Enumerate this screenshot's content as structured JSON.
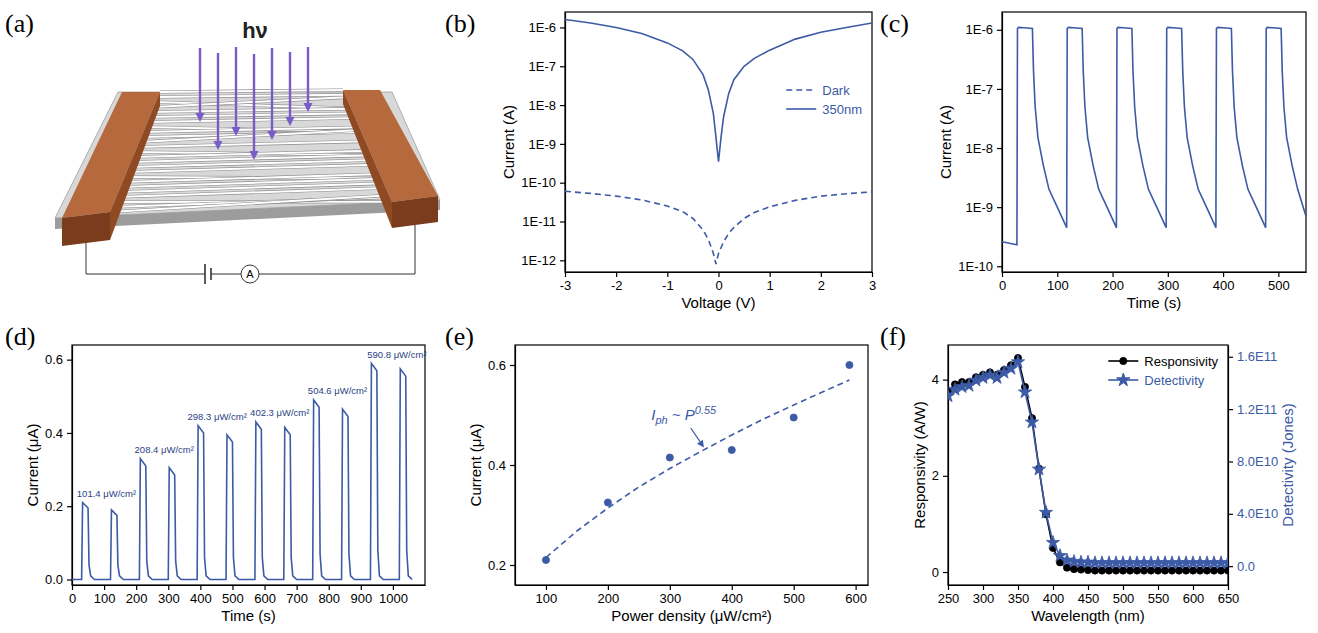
{
  "chart_data": [
    {
      "type": "diagram",
      "panel": "(a)",
      "light_label": "hν",
      "meter_label": "A"
    },
    {
      "type": "line",
      "panel": "(b)",
      "x_label": "Voltage (V)",
      "y_label": "Current (A)",
      "log": "y",
      "legend": "right",
      "xlim": [
        -3,
        3
      ],
      "xticks": [
        -3,
        -2,
        -1,
        0,
        1,
        2,
        3
      ],
      "ylim": [
        5e-13,
        2.5e-06
      ],
      "yticks": [
        {
          "value": 1e-12,
          "label": "1E-12"
        },
        {
          "value": 1e-11,
          "label": "1E-11"
        },
        {
          "value": 1e-10,
          "label": "1E-10"
        },
        {
          "value": 1e-09,
          "label": "1E-9"
        },
        {
          "value": 1e-08,
          "label": "1E-8"
        },
        {
          "value": 1e-07,
          "label": "1E-7"
        },
        {
          "value": 1e-06,
          "label": "1E-6"
        }
      ],
      "series": [
        {
          "name": "Dark",
          "color": "#3c5aa6",
          "line_style": "dashed",
          "x": [
            -3,
            -2.5,
            -2,
            -1.5,
            -1,
            -0.7,
            -0.5,
            -0.3,
            -0.2,
            -0.1,
            -0.05,
            0,
            0.1,
            0.2,
            0.3,
            0.5,
            0.7,
            1,
            1.5,
            2,
            2.5,
            3
          ],
          "values": [
            6e-11,
            5.3e-11,
            4.5e-11,
            3.6e-11,
            2.5e-11,
            1.8e-11,
            1.2e-11,
            6e-12,
            3.5e-12,
            1.5e-12,
            8e-13,
            1.5e-12,
            3e-12,
            5e-12,
            7e-12,
            1.2e-11,
            1.7e-11,
            2.4e-11,
            3.5e-11,
            4.5e-11,
            5.2e-11,
            5.8e-11
          ]
        },
        {
          "name": "350nm",
          "color": "#3c5aa6",
          "line_style": "solid",
          "x": [
            -3,
            -2.5,
            -2,
            -1.5,
            -1,
            -0.7,
            -0.5,
            -0.3,
            -0.2,
            -0.1,
            -0.05,
            0,
            0.05,
            0.1,
            0.2,
            0.3,
            0.5,
            0.7,
            1,
            1.5,
            2,
            2.5,
            3
          ],
          "values": [
            1.6e-06,
            1.3e-06,
            1e-06,
            7e-07,
            4e-07,
            2.5e-07,
            1.5e-07,
            6e-08,
            2.5e-08,
            6e-09,
            1.5e-09,
            3.5e-10,
            1.5e-09,
            5e-09,
            2e-08,
            4.5e-08,
            1e-07,
            1.6e-07,
            2.6e-07,
            5e-07,
            7.5e-07,
            1e-06,
            1.3e-06
          ]
        }
      ]
    },
    {
      "type": "line",
      "panel": "(c)",
      "x_label": "Time (s)",
      "y_label": "Current (A)",
      "log": "y",
      "xlim": [
        0,
        550
      ],
      "xticks": [
        0,
        100,
        200,
        300,
        400,
        500
      ],
      "ylim": [
        8e-11,
        2e-06
      ],
      "yticks": [
        {
          "value": 1e-10,
          "label": "1E-10"
        },
        {
          "value": 1e-09,
          "label": "1E-9"
        },
        {
          "value": 1e-08,
          "label": "1E-8"
        },
        {
          "value": 1e-07,
          "label": "1E-7"
        },
        {
          "value": 1e-06,
          "label": "1E-6"
        }
      ],
      "series": [
        {
          "color": "#3c5aa6",
          "line_style": "solid",
          "x": [
            0,
            27,
            28,
            30,
            40,
            55,
            57,
            60,
            65,
            75,
            85,
            100,
            117,
            118,
            120,
            130,
            145,
            147,
            150,
            155,
            165,
            175,
            190,
            207,
            208,
            210,
            220,
            235,
            237,
            240,
            245,
            255,
            265,
            280,
            297,
            298,
            300,
            310,
            325,
            327,
            330,
            335,
            345,
            355,
            370,
            387,
            388,
            390,
            400,
            415,
            417,
            420,
            425,
            435,
            445,
            460,
            477,
            478,
            480,
            490,
            505,
            507,
            510,
            515,
            525,
            535,
            550
          ],
          "values": [
            2.6e-10,
            2.3e-10,
            1.05e-06,
            1.1e-06,
            1.08e-06,
            1.05e-06,
            2e-07,
            5e-08,
            1.5e-08,
            5e-09,
            2e-09,
            1e-09,
            4.5e-10,
            1.05e-06,
            1.1e-06,
            1.08e-06,
            1.05e-06,
            2e-07,
            5e-08,
            1.5e-08,
            5e-09,
            2e-09,
            1e-09,
            4.5e-10,
            1.05e-06,
            1.1e-06,
            1.08e-06,
            1.05e-06,
            2e-07,
            5e-08,
            1.5e-08,
            5e-09,
            2e-09,
            1e-09,
            4.5e-10,
            1.05e-06,
            1.1e-06,
            1.08e-06,
            1.05e-06,
            2e-07,
            5e-08,
            1.5e-08,
            5e-09,
            2e-09,
            1e-09,
            4.5e-10,
            1.05e-06,
            1.1e-06,
            1.08e-06,
            1.05e-06,
            2e-07,
            5e-08,
            1.5e-08,
            5e-09,
            2e-09,
            1e-09,
            4.5e-10,
            1.05e-06,
            1.1e-06,
            1.08e-06,
            1.05e-06,
            2e-07,
            5e-08,
            1.5e-08,
            5e-09,
            2e-09,
            7e-10
          ]
        }
      ]
    },
    {
      "type": "line",
      "panel": "(d)",
      "x_label": "Time (s)",
      "y_label": "Current (μA)",
      "xlim": [
        0,
        1100
      ],
      "xticks": [
        0,
        100,
        200,
        300,
        400,
        500,
        600,
        700,
        800,
        900,
        1000
      ],
      "ylim": [
        -0.015,
        0.64
      ],
      "yticks": [
        {
          "value": 0,
          "label": "0.0"
        },
        0.2,
        0.4,
        0.6
      ],
      "series": [
        {
          "color": "#3c5aa6",
          "line_style": "solid",
          "x": [
            0,
            30,
            33,
            50,
            53,
            58,
            70,
            120,
            123,
            140,
            143,
            148,
            160,
            210,
            213,
            230,
            233,
            238,
            250,
            300,
            303,
            320,
            323,
            328,
            340,
            390,
            393,
            410,
            413,
            418,
            430,
            480,
            483,
            500,
            503,
            508,
            520,
            570,
            573,
            590,
            593,
            598,
            610,
            660,
            663,
            680,
            683,
            688,
            700,
            750,
            753,
            770,
            773,
            778,
            790,
            840,
            843,
            860,
            863,
            868,
            880,
            930,
            933,
            950,
            953,
            958,
            970,
            1020,
            1023,
            1040,
            1043,
            1048,
            1060
          ],
          "values": [
            0,
            0,
            0.21,
            0.195,
            0.04,
            0.01,
            0,
            0,
            0.19,
            0.175,
            0.04,
            0.01,
            0,
            0,
            0.33,
            0.31,
            0.05,
            0.01,
            0,
            0,
            0.305,
            0.285,
            0.05,
            0.01,
            0,
            0,
            0.42,
            0.4,
            0.06,
            0.01,
            0,
            0,
            0.395,
            0.375,
            0.06,
            0.01,
            0,
            0,
            0.43,
            0.41,
            0.06,
            0.01,
            0,
            0,
            0.415,
            0.395,
            0.06,
            0.01,
            0,
            0,
            0.49,
            0.47,
            0.07,
            0.01,
            0,
            0,
            0.465,
            0.445,
            0.07,
            0.01,
            0,
            0,
            0.59,
            0.57,
            0.08,
            0.01,
            0,
            0,
            0.575,
            0.555,
            0.08,
            0.01,
            0
          ]
        }
      ],
      "annotations": [
        {
          "text": "101.4 μW/cm²",
          "x": 15,
          "y": 0.225
        },
        {
          "text": "208.4 μW/cm²",
          "x": 195,
          "y": 0.345
        },
        {
          "text": "298.3 μW/cm²",
          "x": 360,
          "y": 0.435
        },
        {
          "text": "402.3 μW/cm²",
          "x": 555,
          "y": 0.445
        },
        {
          "text": "504.6 μW/cm²",
          "x": 735,
          "y": 0.505
        },
        {
          "text": "590.8 μW/cm²",
          "x": 920,
          "y": 0.605
        }
      ]
    },
    {
      "type": "scatter",
      "panel": "(e)",
      "x_label": "Power density (μW/cm²)",
      "y_label": "Current (μA)",
      "xlim": [
        50,
        620
      ],
      "xticks": [
        100,
        200,
        300,
        400,
        500,
        600
      ],
      "ylim": [
        0.16,
        0.64
      ],
      "yticks": [
        0.2,
        0.4,
        0.6
      ],
      "series": [
        {
          "type": "scatter",
          "marker": "circle",
          "color": "#3c5aa6",
          "x": [
            100,
            200,
            300,
            400,
            500,
            590
          ],
          "values": [
            0.21,
            0.325,
            0.415,
            0.43,
            0.495,
            0.6
          ]
        },
        {
          "type": "line",
          "line_style": "dashed",
          "color": "#3c5aa6",
          "x": [
            100,
            150,
            200,
            250,
            300,
            350,
            400,
            450,
            500,
            550,
            590
          ],
          "values": [
            0.215,
            0.268,
            0.314,
            0.356,
            0.393,
            0.427,
            0.46,
            0.491,
            0.52,
            0.548,
            0.57
          ]
        }
      ],
      "annotation": {
        "base": "I",
        "sub": "ph",
        "mid": " ~ P",
        "sup": "0.55",
        "x": 270,
        "y": 0.49,
        "arrow_x": 355,
        "arrow_y": 0.435
      }
    },
    {
      "type": "line",
      "panel": "(f)",
      "x_label": "Wavelength (nm)",
      "y_label": "Responsivity (A/W)",
      "y2_label": "Detectivity (Jones)",
      "legend": "upper right",
      "xlim": [
        250,
        650
      ],
      "xticks": [
        250,
        300,
        350,
        400,
        450,
        500,
        550,
        600,
        650
      ],
      "ylim": [
        -0.27,
        4.72
      ],
      "yticks": [
        0,
        2,
        4
      ],
      "y2lim": [
        -14400000000.0,
        169000000000.0
      ],
      "y2ticks": [
        {
          "value": 0,
          "label": "0.0"
        },
        {
          "value": 40000000000.0,
          "label": "4.0E10"
        },
        {
          "value": 80000000000.0,
          "label": "8.0E10"
        },
        {
          "value": 120000000000.0,
          "label": "1.2E11"
        },
        {
          "value": 160000000000.0,
          "label": "1.6E11"
        }
      ],
      "x": [
        250,
        260,
        270,
        280,
        290,
        300,
        310,
        320,
        330,
        340,
        350,
        360,
        370,
        380,
        390,
        400,
        410,
        420,
        430,
        440,
        450,
        460,
        470,
        480,
        490,
        500,
        510,
        520,
        530,
        540,
        550,
        560,
        570,
        580,
        590,
        600,
        610,
        620,
        630,
        640,
        650
      ],
      "series": [
        {
          "name": "Responsivity",
          "color": "#000000",
          "marker": "circle",
          "line_style": "solid",
          "values": [
            3.75,
            3.9,
            3.95,
            3.95,
            4.05,
            4.1,
            4.15,
            4.1,
            4.2,
            4.3,
            4.45,
            3.85,
            3.2,
            2.15,
            1.2,
            0.5,
            0.2,
            0.09,
            0.06,
            0.05,
            0.04,
            0.03,
            0.03,
            0.03,
            0.03,
            0.03,
            0.03,
            0.03,
            0.03,
            0.03,
            0.03,
            0.03,
            0.03,
            0.03,
            0.03,
            0.03,
            0.03,
            0.03,
            0.03,
            0.03,
            0.03
          ]
        },
        {
          "name": "Detectivity",
          "color": "#3c5aa6",
          "marker": "star",
          "line_style": "solid",
          "axis": "y2",
          "values": [
            130000000000.0,
            135000000000.0,
            137000000000.0,
            138000000000.0,
            142000000000.0,
            144000000000.0,
            146000000000.0,
            144000000000.0,
            148000000000.0,
            151000000000.0,
            156000000000.0,
            133000000000.0,
            110000000000.0,
            74000000000.0,
            41000000000.0,
            18000000000.0,
            8000000000.0,
            4500000000.0,
            3500000000.0,
            3000000000.0,
            3000000000.0,
            2500000000.0,
            2500000000.0,
            2500000000.0,
            2500000000.0,
            2500000000.0,
            2500000000.0,
            2500000000.0,
            2500000000.0,
            2500000000.0,
            2500000000.0,
            2500000000.0,
            2500000000.0,
            2500000000.0,
            2500000000.0,
            2500000000.0,
            2500000000.0,
            2500000000.0,
            2500000000.0,
            2500000000.0,
            2500000000.0
          ]
        }
      ]
    }
  ]
}
